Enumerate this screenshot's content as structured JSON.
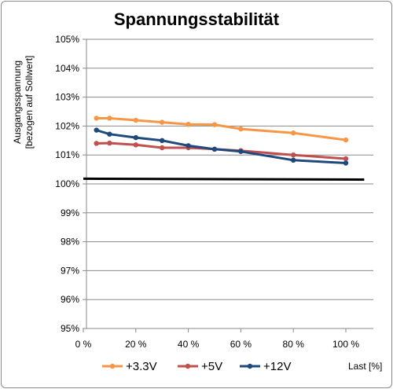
{
  "chart_data": {
    "type": "line",
    "title": "Spannungsstabilität",
    "ylabel_line1": "Ausgangsspannung",
    "ylabel_line2": "[bezogen auf Sollwert]",
    "xlabel": "Last [%]",
    "x_ticks": [
      "0 %",
      "20 %",
      "40 %",
      "60 %",
      "80 %",
      "100 %"
    ],
    "x_tick_values": [
      0,
      20,
      40,
      60,
      80,
      100
    ],
    "y_ticks": [
      "95%",
      "96%",
      "97%",
      "98%",
      "99%",
      "100%",
      "101%",
      "102%",
      "103%",
      "104%",
      "105%"
    ],
    "y_tick_values": [
      95,
      96,
      97,
      98,
      99,
      100,
      101,
      102,
      103,
      104,
      105
    ],
    "xlim": [
      0,
      110
    ],
    "ylim": [
      95,
      105
    ],
    "grid": true,
    "legend_position": "bottom",
    "x": [
      5,
      10,
      20,
      30,
      40,
      50,
      60,
      80,
      100
    ],
    "series": [
      {
        "name": "+3.3V",
        "color": "#f79646",
        "values": [
          102.27,
          102.27,
          102.2,
          102.13,
          102.06,
          102.05,
          101.9,
          101.76,
          101.52
        ]
      },
      {
        "name": "+5V",
        "color": "#c0504d",
        "values": [
          101.4,
          101.41,
          101.35,
          101.25,
          101.25,
          101.2,
          101.15,
          101.0,
          100.87
        ]
      },
      {
        "name": "+12V",
        "color": "#1f497d",
        "values": [
          101.86,
          101.72,
          101.6,
          101.5,
          101.32,
          101.2,
          101.12,
          100.82,
          100.72
        ]
      }
    ],
    "reference_line": {
      "color": "#000000",
      "x": [
        0,
        107
      ],
      "values": [
        100.18,
        100.15
      ]
    }
  }
}
